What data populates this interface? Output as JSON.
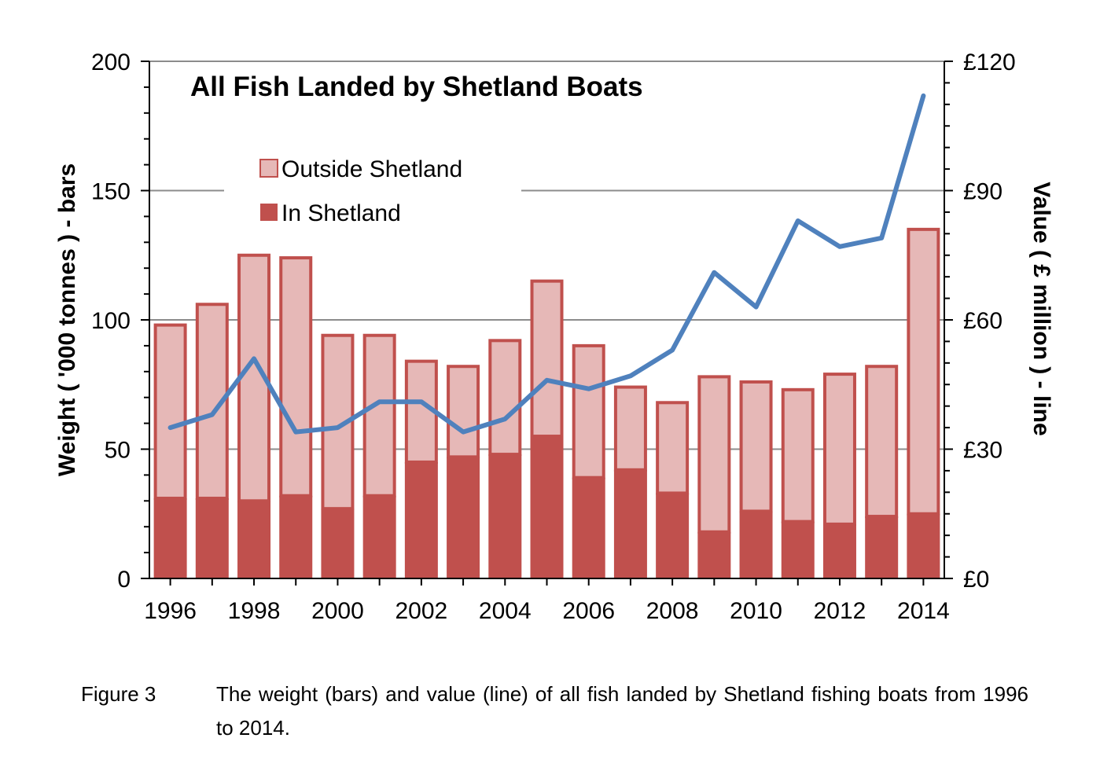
{
  "chart_data": {
    "type": "bar",
    "title": "All Fish Landed by Shetland Boats",
    "categories": [
      "1996",
      "1997",
      "1998",
      "1999",
      "2000",
      "2001",
      "2002",
      "2003",
      "2004",
      "2005",
      "2006",
      "2007",
      "2008",
      "2009",
      "2010",
      "2011",
      "2012",
      "2013",
      "2014"
    ],
    "x_tick_labels": [
      "1996",
      "1998",
      "2000",
      "2002",
      "2004",
      "2006",
      "2008",
      "2010",
      "2012",
      "2014"
    ],
    "series": [
      {
        "name": "In Shetland",
        "type": "stacked-bar",
        "axis": "left",
        "color": "#c0504d",
        "values": [
          31,
          31,
          30,
          32,
          27,
          32,
          45,
          47,
          48,
          55,
          39,
          42,
          33,
          18,
          26,
          22,
          21,
          24,
          25
        ]
      },
      {
        "name": "Outside Shetland",
        "type": "stacked-bar",
        "axis": "left",
        "color": "#e6b8b7",
        "values": [
          67,
          75,
          95,
          92,
          67,
          62,
          39,
          35,
          44,
          60,
          51,
          32,
          35,
          60,
          50,
          51,
          58,
          58,
          110
        ]
      },
      {
        "name": "",
        "type": "line",
        "axis": "right",
        "color": "#4f81bd",
        "values": [
          35,
          38,
          51,
          34,
          35,
          41,
          41,
          34,
          37,
          46,
          44,
          47,
          53,
          71,
          63,
          83,
          77,
          79,
          112
        ]
      }
    ],
    "ylabel": "Weight ( '000 tonnes ) - bars",
    "y2label": "Value ( £ million ) - line",
    "ylim": [
      0,
      200
    ],
    "y2lim": [
      0,
      120
    ],
    "y_ticks": [
      0,
      50,
      100,
      150,
      200
    ],
    "y_tick_labels": [
      "0",
      "50",
      "100",
      "150",
      "200"
    ],
    "y2_ticks": [
      0,
      30,
      60,
      90,
      120
    ],
    "y2_tick_labels": [
      "£0",
      "£30",
      "£60",
      "£90",
      "£120"
    ],
    "grid": "horizontal",
    "legend": "top-left"
  },
  "caption": {
    "label": "Figure 3",
    "text": "The weight (bars) and value (line) of all fish landed by Shetland fishing boats from 1996 to 2014."
  }
}
